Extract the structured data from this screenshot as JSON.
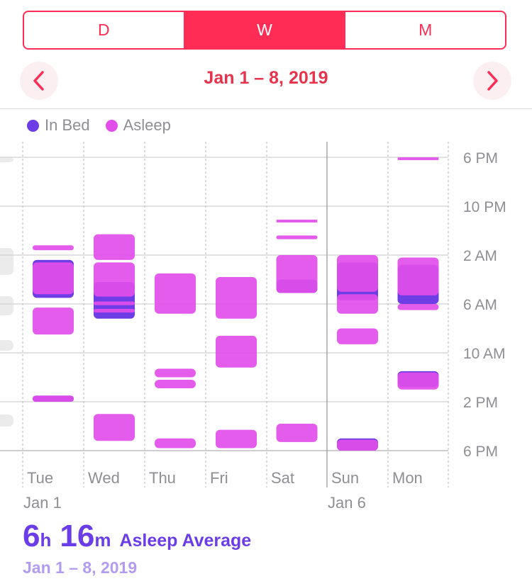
{
  "segments": [
    {
      "label": "D",
      "active": false
    },
    {
      "label": "W",
      "active": true
    },
    {
      "label": "M",
      "active": false
    }
  ],
  "header": {
    "date_range": "Jan 1 – 8, 2019"
  },
  "legend": [
    {
      "label": "In Bed",
      "color": "#6d3de6"
    },
    {
      "label": "Asleep",
      "color": "#e24ee9"
    }
  ],
  "chart_data": {
    "type": "range-bar",
    "y_ticks": [
      "6 PM",
      "10 PM",
      "2 AM",
      "6 AM",
      "10 AM",
      "2 PM",
      "6 PM"
    ],
    "y_axis_hours_from_6pm": [
      0,
      24
    ],
    "categories": [
      "Tue",
      "Wed",
      "Thu",
      "Fri",
      "Sat",
      "Sun",
      "Mon"
    ],
    "week_labels": [
      {
        "day_index": 0,
        "label": "Jan 1"
      },
      {
        "day_index": 5,
        "label": "Jan 6"
      }
    ],
    "series": [
      {
        "name": "In Bed",
        "color": "#6d3de6",
        "days": [
          [
            [
              8.4,
              11.5
            ],
            [
              19.5,
              20.0
            ]
          ],
          [
            [
              10.2,
              13.2
            ]
          ],
          [],
          [],
          [
            [
              10.0,
              11.1
            ]
          ],
          [
            [
              8.6,
              11.7
            ],
            [
              23.0,
              24.0
            ]
          ],
          [
            [
              8.8,
              12.0
            ],
            [
              17.5,
              18.8
            ]
          ]
        ]
      },
      {
        "name": "Asleep",
        "color": "#e24ee9",
        "days": [
          [
            [
              7.2,
              7.6
            ],
            [
              8.6,
              11.2
            ],
            [
              12.3,
              14.5
            ],
            [
              19.5,
              20.0
            ]
          ],
          [
            [
              6.3,
              8.4
            ],
            [
              8.6,
              11.4
            ],
            [
              11.8,
              12.1
            ],
            [
              12.4,
              12.7
            ],
            [
              21.0,
              23.2
            ]
          ],
          [
            [
              9.5,
              12.8
            ],
            [
              17.3,
              18.0
            ],
            [
              18.2,
              18.9
            ],
            [
              23.0,
              23.8
            ]
          ],
          [
            [
              9.8,
              13.2
            ],
            [
              14.6,
              17.2
            ],
            [
              22.3,
              23.8
            ]
          ],
          [
            [
              5.1,
              5.3
            ],
            [
              6.4,
              6.7
            ],
            [
              8.0,
              11.1
            ],
            [
              21.8,
              23.3
            ]
          ],
          [
            [
              8.0,
              11.0
            ],
            [
              11.2,
              12.8
            ],
            [
              14.0,
              15.3
            ],
            [
              23.1,
              24.0
            ]
          ],
          [
            [
              0.0,
              0.1
            ],
            [
              8.2,
              11.3
            ],
            [
              12.0,
              12.5
            ],
            [
              17.6,
              19.0
            ]
          ]
        ]
      }
    ]
  },
  "summary": {
    "hours": "6",
    "hours_unit": "h",
    "minutes": "16",
    "minutes_unit": "m",
    "label": "Asleep Average",
    "range": "Jan 1 – 8, 2019"
  }
}
